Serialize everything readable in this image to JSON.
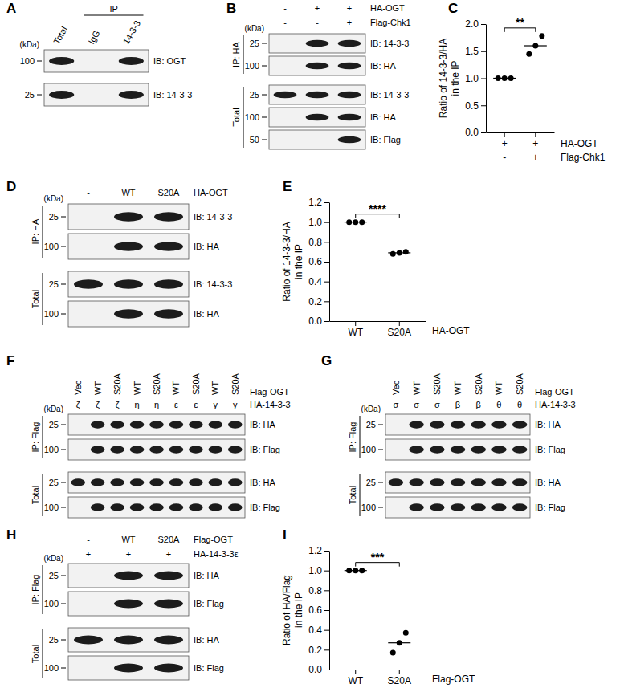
{
  "chart_data": [
    {
      "type": "dot",
      "title": "C",
      "ylabel": [
        "Ratio of 14-3-3/HA",
        "in the IP"
      ],
      "categories": [
        null,
        null
      ],
      "x_table": [
        {
          "name": "HA-OGT",
          "labels": [
            "+",
            "+"
          ]
        },
        {
          "name": "Flag-Chk1",
          "labels": [
            "-",
            "+"
          ]
        }
      ],
      "values": [
        [
          1.0,
          1.0,
          1.0
        ],
        [
          1.45,
          1.6,
          1.78
        ]
      ],
      "means": [
        1.0,
        1.6
      ],
      "ylim": [
        0,
        2.0
      ],
      "yticks": [
        {
          "value": 0,
          "label": "0.0"
        },
        0.5,
        {
          "value": 1,
          "label": "1.0"
        },
        1.5,
        {
          "value": 2,
          "label": "2.0"
        }
      ],
      "annotations": [
        "**"
      ],
      "color": "#000000"
    },
    {
      "type": "dot",
      "title": "E",
      "ylabel": [
        "Ratio of 14-3-3/HA",
        "in the IP"
      ],
      "categories": [
        "WT",
        "S20A"
      ],
      "xlabel": "HA-OGT",
      "values": [
        [
          1.0,
          1.0,
          1.0
        ],
        [
          0.68,
          0.69,
          0.7
        ]
      ],
      "means": [
        1.0,
        0.69
      ],
      "ylim": [
        0,
        1.2
      ],
      "yticks": [
        {
          "value": 0,
          "label": "0.0"
        },
        0.2,
        0.4,
        0.6,
        0.8,
        {
          "value": 1,
          "label": "1.0"
        },
        1.2
      ],
      "annotations": [
        "****"
      ],
      "color": "#000000"
    },
    {
      "type": "dot",
      "title": "I",
      "ylabel": [
        "Ratio of HA/Flag",
        "in the IP"
      ],
      "categories": [
        "WT",
        "S20A"
      ],
      "xlabel": "Flag-OGT",
      "values": [
        [
          1.0,
          1.0,
          1.0
        ],
        [
          0.17,
          0.27,
          0.37
        ]
      ],
      "means": [
        1.0,
        0.27
      ],
      "ylim": [
        0,
        1.2
      ],
      "yticks": [
        {
          "value": 0,
          "label": "0.0"
        },
        0.2,
        0.4,
        0.6,
        0.8,
        {
          "value": 1,
          "label": "1.0"
        },
        1.2
      ],
      "annotations": [
        "***"
      ],
      "color": "#000000"
    }
  ],
  "panels": [
    {
      "label": "A",
      "header_rows": [
        {
          "labels": [
            "Total",
            "IgG",
            "14-3-3"
          ]
        }
      ],
      "ip_header": {
        "text": "IP",
        "from": "IgG",
        "to": "14-3-3"
      },
      "kda": "(kDa)",
      "sections": [
        {
          "blots": [
            {
              "marker": 100,
              "label": "IB: OGT",
              "bands": [
                true,
                false,
                true
              ]
            },
            {
              "marker": 25,
              "label": "IB: 14-3-3",
              "bands": [
                true,
                false,
                true
              ]
            }
          ]
        }
      ]
    },
    {
      "label": "B",
      "header_rows": [
        {
          "name": "HA-OGT",
          "labels": [
            "-",
            "+",
            "+"
          ]
        },
        {
          "name": "Flag-Chk1",
          "labels": [
            "-",
            "-",
            "+"
          ]
        }
      ],
      "kda": "(kDa)",
      "sections": [
        {
          "label": "IP: HA",
          "blots": [
            {
              "marker": 25,
              "label": "IB: 14-3-3",
              "bands": [
                false,
                true,
                true
              ]
            },
            {
              "marker": 100,
              "label": "IB: HA",
              "bands": [
                false,
                true,
                true
              ]
            }
          ]
        },
        {
          "label": "Total",
          "blots": [
            {
              "marker": 25,
              "label": "IB: 14-3-3",
              "bands": [
                true,
                true,
                true
              ]
            },
            {
              "marker": 100,
              "label": "IB: HA",
              "bands": [
                false,
                true,
                true
              ]
            },
            {
              "marker": 50,
              "label": "IB: Flag",
              "bands": [
                false,
                false,
                true
              ]
            }
          ]
        }
      ]
    },
    {
      "label": "D",
      "header_rows": [
        {
          "name": "HA-OGT",
          "labels": [
            "-",
            "WT",
            "S20A"
          ]
        }
      ],
      "kda": "(kDa)",
      "sections": [
        {
          "label": "IP: HA",
          "blots": [
            {
              "marker": 25,
              "label": "IB: 14-3-3",
              "bands": [
                false,
                true,
                true
              ]
            },
            {
              "marker": 100,
              "label": "IB: HA",
              "bands": [
                false,
                true,
                true
              ]
            }
          ]
        },
        {
          "label": "Total",
          "blots": [
            {
              "marker": 25,
              "label": "IB: 14-3-3",
              "bands": [
                true,
                true,
                true
              ]
            },
            {
              "marker": 100,
              "label": "IB: HA",
              "bands": [
                false,
                true,
                true
              ]
            }
          ]
        }
      ]
    },
    {
      "label": "F",
      "header_rows": [
        {
          "name": "Flag-OGT",
          "labels": [
            "Vec",
            "WT",
            "S20A",
            "WT",
            "S20A",
            "WT",
            "S20A",
            "WT",
            "S20A"
          ]
        },
        {
          "name": "HA-14-3-3",
          "labels": [
            "ζ",
            "ζ",
            "ζ",
            "η",
            "η",
            "ε",
            "ε",
            "γ",
            "γ"
          ]
        }
      ],
      "kda": "(kDa)",
      "sections": [
        {
          "label": "IP: Flag",
          "blots": [
            {
              "marker": 25,
              "label": "IB: HA",
              "bands": [
                false,
                true,
                true,
                true,
                true,
                true,
                true,
                true,
                true
              ]
            },
            {
              "marker": 100,
              "label": "IB: Flag",
              "bands": [
                false,
                true,
                true,
                true,
                true,
                true,
                true,
                true,
                true
              ]
            }
          ]
        },
        {
          "label": "Total",
          "blots": [
            {
              "marker": 25,
              "label": "IB: HA",
              "bands": [
                true,
                true,
                true,
                true,
                true,
                true,
                true,
                true,
                true
              ]
            },
            {
              "marker": 100,
              "label": "IB: Flag",
              "bands": [
                false,
                true,
                true,
                true,
                true,
                true,
                true,
                true,
                true
              ]
            }
          ]
        }
      ]
    },
    {
      "label": "G",
      "header_rows": [
        {
          "name": "Flag-OGT",
          "labels": [
            "Vec",
            "WT",
            "S20A",
            "WT",
            "S20A",
            "WT",
            "S20A"
          ]
        },
        {
          "name": "HA-14-3-3",
          "labels": [
            "σ",
            "σ",
            "σ",
            "β",
            "β",
            "θ",
            "θ"
          ]
        }
      ],
      "kda": "(kDa)",
      "sections": [
        {
          "label": "IP: Flag",
          "blots": [
            {
              "marker": 25,
              "label": "IB: HA",
              "bands": [
                false,
                true,
                true,
                true,
                true,
                true,
                true
              ]
            },
            {
              "marker": 100,
              "label": "IB: Flag",
              "bands": [
                false,
                true,
                true,
                true,
                true,
                true,
                true
              ]
            }
          ]
        },
        {
          "label": "Total",
          "blots": [
            {
              "marker": 25,
              "label": "IB: HA",
              "bands": [
                true,
                true,
                true,
                true,
                true,
                true,
                true
              ]
            },
            {
              "marker": 100,
              "label": "IB: Flag",
              "bands": [
                false,
                true,
                true,
                true,
                true,
                true,
                true
              ]
            }
          ]
        }
      ]
    },
    {
      "label": "H",
      "header_rows": [
        {
          "name": "Flag-OGT",
          "labels": [
            "-",
            "WT",
            "S20A"
          ]
        },
        {
          "name": "HA-14-3-3ε",
          "labels": [
            "+",
            "+",
            "+"
          ]
        }
      ],
      "kda": "(kDa)",
      "sections": [
        {
          "label": "IP: Flag",
          "blots": [
            {
              "marker": 25,
              "label": "IB: HA",
              "bands": [
                false,
                true,
                true
              ]
            },
            {
              "marker": 100,
              "label": "IB: Flag",
              "bands": [
                false,
                true,
                true
              ]
            }
          ]
        },
        {
          "label": "Total",
          "blots": [
            {
              "marker": 25,
              "label": "IB: HA",
              "bands": [
                true,
                true,
                true
              ]
            },
            {
              "marker": 100,
              "label": "IB: Flag",
              "bands": [
                false,
                true,
                true
              ]
            }
          ]
        }
      ]
    }
  ]
}
